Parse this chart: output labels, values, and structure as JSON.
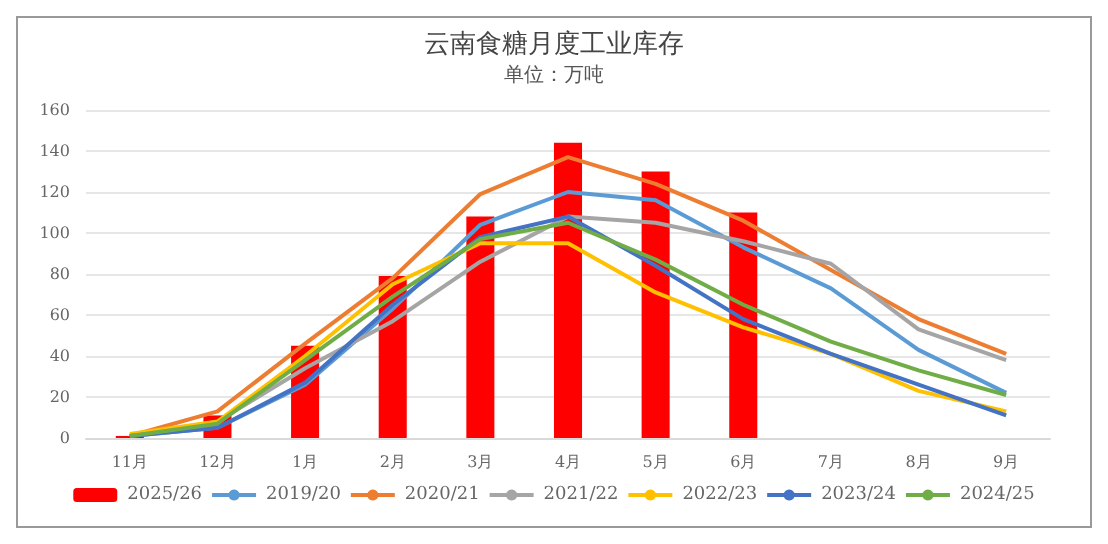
{
  "chart_data": {
    "type": "bar",
    "title": "云南食糖月度工业库存",
    "subtitle": "单位：万吨",
    "categories": [
      "11月",
      "12月",
      "1月",
      "2月",
      "3月",
      "4月",
      "5月",
      "6月",
      "7月",
      "8月",
      "9月"
    ],
    "ylim": [
      0,
      160
    ],
    "yticks": [
      0,
      20,
      40,
      60,
      80,
      100,
      120,
      140,
      160
    ],
    "grid": "y",
    "legend": "bottom",
    "marker": "none",
    "series": [
      {
        "name": "2025/26",
        "color": "#ff0000",
        "values": [
          1,
          11,
          45,
          79,
          108,
          144,
          130,
          110,
          null,
          null,
          null
        ]
      },
      {
        "name": "2019/20",
        "type": "line",
        "color": "#5b9bd5",
        "values": [
          1,
          5,
          26,
          63,
          104,
          120,
          116,
          93,
          73,
          43,
          22
        ]
      },
      {
        "name": "2020/21",
        "type": "line",
        "color": "#ed7d31",
        "values": [
          1,
          13,
          46,
          78,
          119,
          137,
          124,
          106,
          82,
          58,
          41
        ]
      },
      {
        "name": "2021/22",
        "type": "line",
        "color": "#a5a5a5",
        "values": [
          1,
          8,
          34,
          57,
          86,
          108,
          105,
          96,
          85,
          53,
          38
        ]
      },
      {
        "name": "2022/23",
        "type": "line",
        "color": "#ffc000",
        "values": [
          2,
          8,
          40,
          75,
          95,
          95,
          71,
          54,
          41,
          23,
          13
        ]
      },
      {
        "name": "2023/24",
        "type": "line",
        "color": "#4472c4",
        "values": [
          1,
          5,
          27,
          65,
          98,
          108,
          84,
          58,
          41,
          26,
          11
        ]
      },
      {
        "name": "2024/25",
        "type": "line",
        "color": "#70ad47",
        "values": [
          1,
          7,
          38,
          69,
          97,
          105,
          87,
          65,
          47,
          33,
          21
        ]
      }
    ]
  }
}
